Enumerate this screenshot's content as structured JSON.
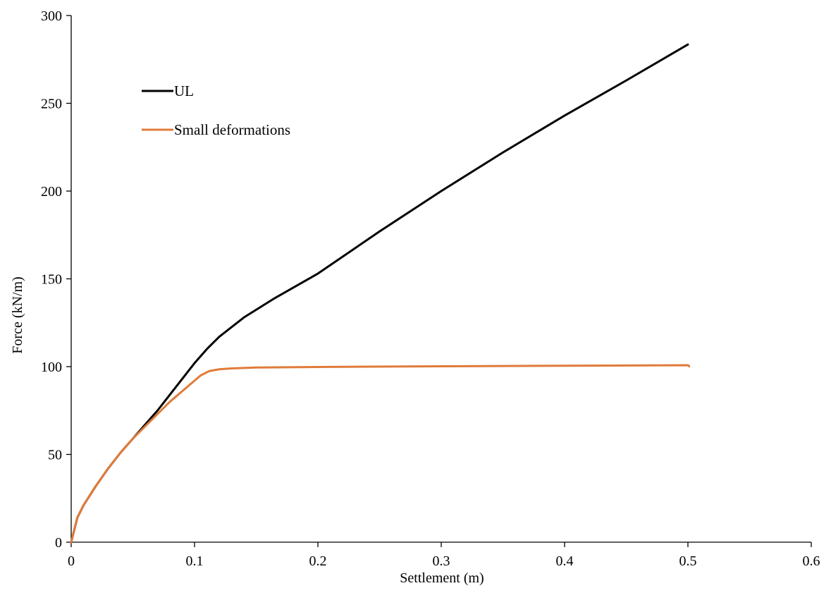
{
  "chart_data": {
    "type": "line",
    "title": "",
    "xlabel": "Settlement (m)",
    "ylabel": "Force (kN/m)",
    "xlim": [
      0,
      0.6
    ],
    "ylim": [
      0,
      300
    ],
    "xticks": [
      0,
      0.1,
      0.2,
      0.3,
      0.4,
      0.5,
      0.6
    ],
    "xtick_labels": [
      "0",
      "0.1",
      "0.2",
      "0.3",
      "0.4",
      "0.5",
      "0.6"
    ],
    "yticks": [
      0,
      50,
      100,
      150,
      200,
      250,
      300
    ],
    "ytick_labels": [
      "0",
      "50",
      "100",
      "150",
      "200",
      "250",
      "300"
    ],
    "grid": false,
    "legend_position": "upper-left",
    "series": [
      {
        "name": "UL",
        "color": "#000000",
        "x": [
          0,
          0.005,
          0.01,
          0.02,
          0.03,
          0.04,
          0.05,
          0.06,
          0.07,
          0.08,
          0.09,
          0.1,
          0.11,
          0.12,
          0.14,
          0.165,
          0.2,
          0.25,
          0.3,
          0.35,
          0.4,
          0.45,
          0.5
        ],
        "y": [
          0,
          14,
          21,
          32,
          42,
          51,
          59,
          67,
          75,
          84,
          93,
          102,
          110,
          117,
          128,
          139,
          153,
          177,
          200,
          222,
          243,
          263,
          283.5
        ]
      },
      {
        "name": "Small deformations",
        "color": "#E07B3A",
        "x": [
          0,
          0.005,
          0.01,
          0.02,
          0.03,
          0.04,
          0.05,
          0.06,
          0.07,
          0.08,
          0.09,
          0.1,
          0.105,
          0.112,
          0.12,
          0.13,
          0.15,
          0.2,
          0.3,
          0.4,
          0.5,
          0.501
        ],
        "y": [
          0,
          14,
          21,
          32,
          42,
          51,
          59,
          66,
          73,
          80,
          86,
          92,
          95,
          97.5,
          98.5,
          99,
          99.5,
          99.8,
          100.2,
          100.5,
          100.8,
          100.2
        ]
      }
    ]
  }
}
